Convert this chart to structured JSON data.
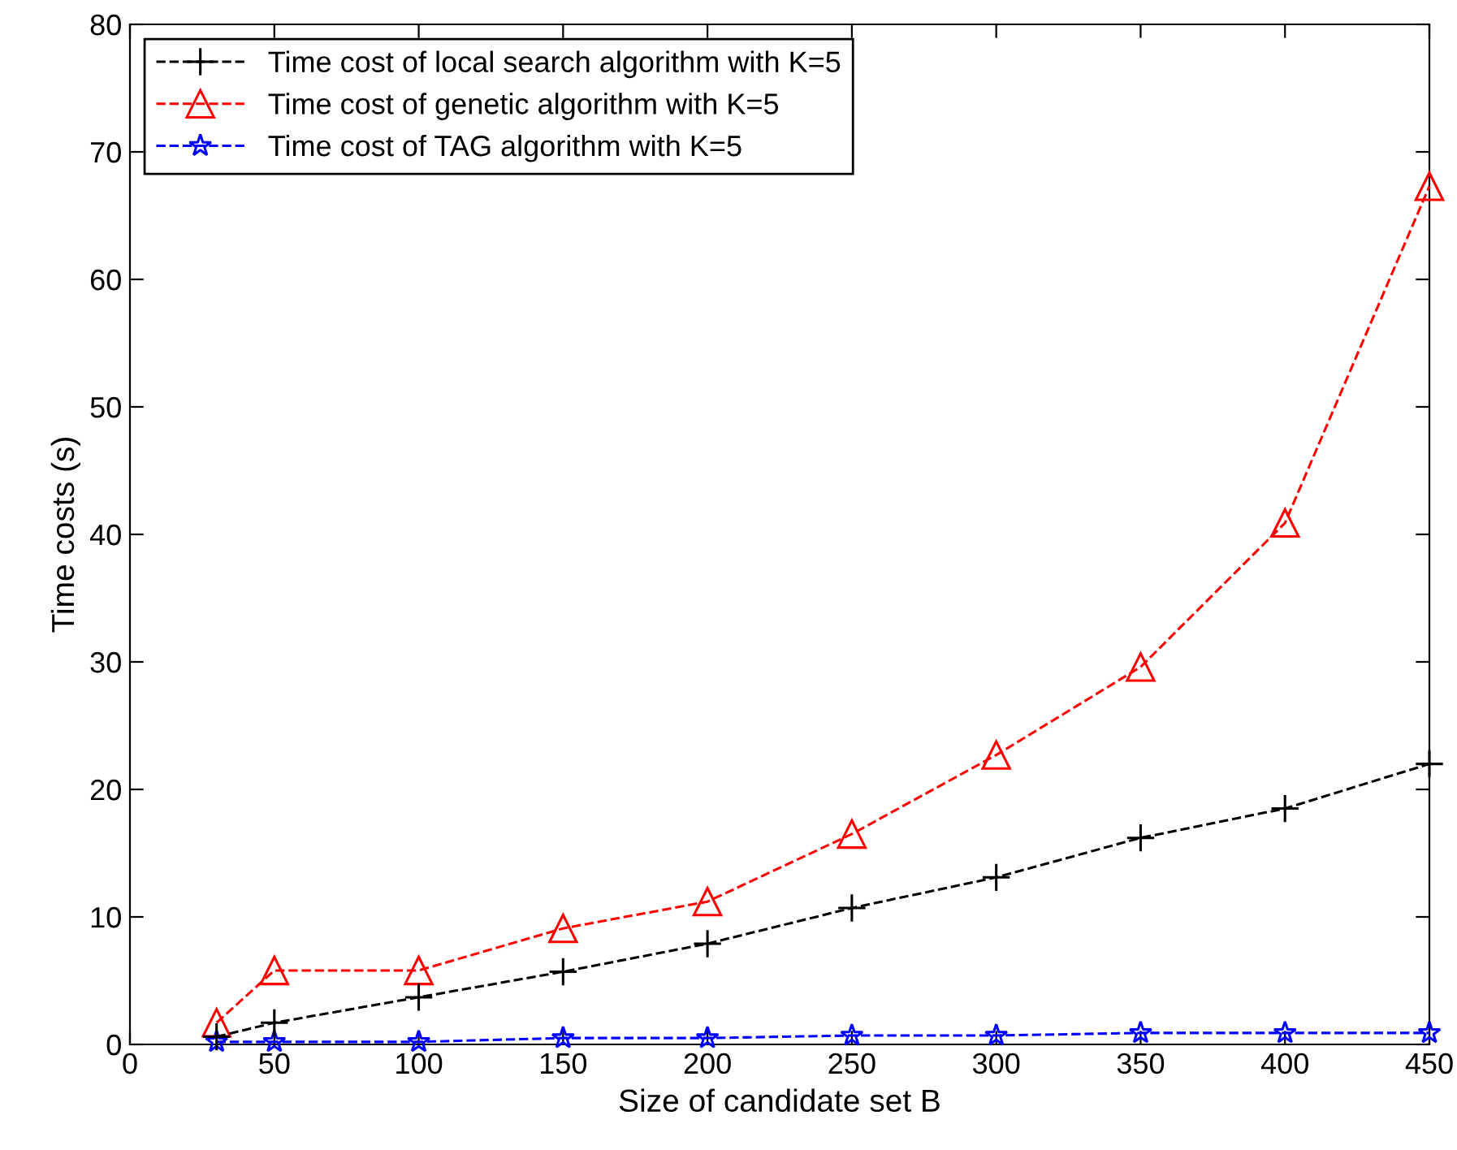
{
  "chart_data": {
    "type": "line",
    "xlabel": "Size of candidate set B",
    "ylabel": "Time costs (s)",
    "xlim": [
      0,
      450
    ],
    "xticks": [
      0,
      50,
      100,
      150,
      200,
      250,
      300,
      350,
      400,
      450
    ],
    "ylim": [
      0,
      80
    ],
    "yticks": [
      0,
      10,
      20,
      30,
      40,
      50,
      60,
      70,
      80
    ],
    "x": [
      30,
      50,
      100,
      150,
      200,
      250,
      300,
      350,
      400,
      450
    ],
    "grid": false,
    "legend": "top left",
    "line_style": "dashed",
    "series": [
      {
        "name": "Time cost of local search algorithm with K=5",
        "color": "#000000",
        "marker": "cross",
        "values": [
          0.6,
          1.7,
          3.7,
          5.7,
          7.9,
          10.7,
          13.1,
          16.2,
          18.5,
          22.0
        ]
      },
      {
        "name": "Time cost of genetic algorithm with K=5",
        "color": "#ff0000",
        "marker": "triangle",
        "values": [
          1.7,
          5.8,
          5.8,
          9.1,
          11.2,
          16.5,
          22.7,
          29.6,
          40.9,
          67.3
        ]
      },
      {
        "name": "Time cost of TAG algorithm with K=5",
        "color": "#0000ff",
        "marker": "star",
        "values": [
          0.2,
          0.2,
          0.2,
          0.5,
          0.5,
          0.7,
          0.7,
          0.9,
          0.9,
          0.9
        ]
      }
    ]
  }
}
